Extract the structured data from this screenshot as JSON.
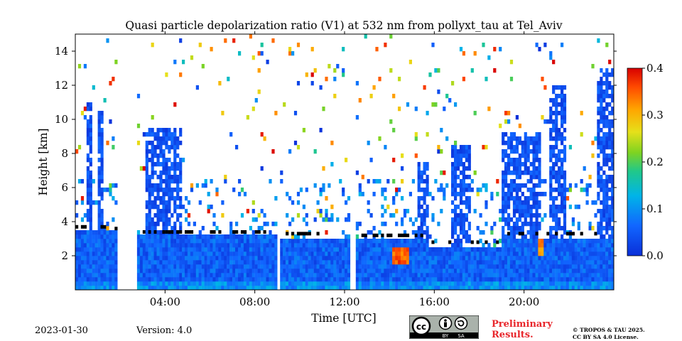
{
  "chart_data": {
    "type": "heatmap",
    "title": "Quasi particle depolarization ratio (V1) at 532 nm from pollyxt_tau at Tel_Aviv",
    "xlabel": "Time [UTC]",
    "ylabel": "Height [km]",
    "xlim": [
      0,
      24
    ],
    "ylim": [
      0,
      15
    ],
    "x_ticks": [
      {
        "value": 4,
        "label": "04:00"
      },
      {
        "value": 8,
        "label": "08:00"
      },
      {
        "value": 12,
        "label": "12:00"
      },
      {
        "value": 16,
        "label": "16:00"
      },
      {
        "value": 20,
        "label": "20:00"
      }
    ],
    "y_ticks": [
      {
        "value": 2,
        "label": "2"
      },
      {
        "value": 4,
        "label": "4"
      },
      {
        "value": 6,
        "label": "6"
      },
      {
        "value": 8,
        "label": "8"
      },
      {
        "value": 10,
        "label": "10"
      },
      {
        "value": 12,
        "label": "12"
      },
      {
        "value": 14,
        "label": "14"
      }
    ],
    "colorbar": {
      "range": [
        0.0,
        0.4
      ],
      "ticks": [
        {
          "value": 0.0,
          "label": "0.0"
        },
        {
          "value": 0.1,
          "label": "0.1"
        },
        {
          "value": 0.2,
          "label": "0.2"
        },
        {
          "value": 0.3,
          "label": "0.3"
        },
        {
          "value": 0.4,
          "label": "0.4"
        }
      ],
      "colormap": "jet"
    },
    "no_data_periods_utc": [
      [
        1.85,
        2.7
      ],
      [
        8.95,
        9.1
      ],
      [
        12.3,
        12.55
      ]
    ],
    "aerosol_layer_top_km": [
      {
        "start": 0.0,
        "end": 1.4,
        "top": 3.5
      },
      {
        "start": 1.4,
        "end": 1.85,
        "top": 3.4
      },
      {
        "start": 2.7,
        "end": 8.95,
        "top": 3.2
      },
      {
        "start": 9.1,
        "end": 12.3,
        "top": 3.1
      },
      {
        "start": 12.55,
        "end": 15.7,
        "top": 3.0
      },
      {
        "start": 15.7,
        "end": 19.0,
        "top": 2.6
      },
      {
        "start": 19.0,
        "end": 24.0,
        "top": 3.1
      }
    ],
    "cloud_columns": [
      {
        "start": 0.55,
        "end": 0.75,
        "top": 11.0
      },
      {
        "start": 0.95,
        "end": 1.2,
        "top": 10.5
      },
      {
        "start": 3.1,
        "end": 4.7,
        "top": 9.5
      },
      {
        "start": 15.2,
        "end": 15.8,
        "top": 7.5
      },
      {
        "start": 16.8,
        "end": 17.6,
        "top": 8.5
      },
      {
        "start": 19.0,
        "end": 20.7,
        "top": 9.2
      },
      {
        "start": 21.1,
        "end": 21.9,
        "top": 12.0
      },
      {
        "start": 23.2,
        "end": 24.0,
        "top": 13.0
      }
    ],
    "high_depol_features": [
      {
        "start": 14.1,
        "end": 14.9,
        "bottom": 1.6,
        "top": 2.6,
        "value": 0.38
      },
      {
        "start": 20.6,
        "end": 20.9,
        "bottom": 2.1,
        "top": 2.9,
        "value": 0.36
      }
    ]
  },
  "footer": {
    "date": "2023-01-30",
    "version": "Version: 4.0",
    "preliminary_line1": "Preliminary",
    "preliminary_line2": "Results.",
    "copyright_line1": "© TROPOS & TAU 2025.",
    "copyright_line2": "CC BY SA 4.0 License.",
    "cc_badge": {
      "cc": "cc",
      "by": "BY",
      "sa": "SA"
    }
  }
}
